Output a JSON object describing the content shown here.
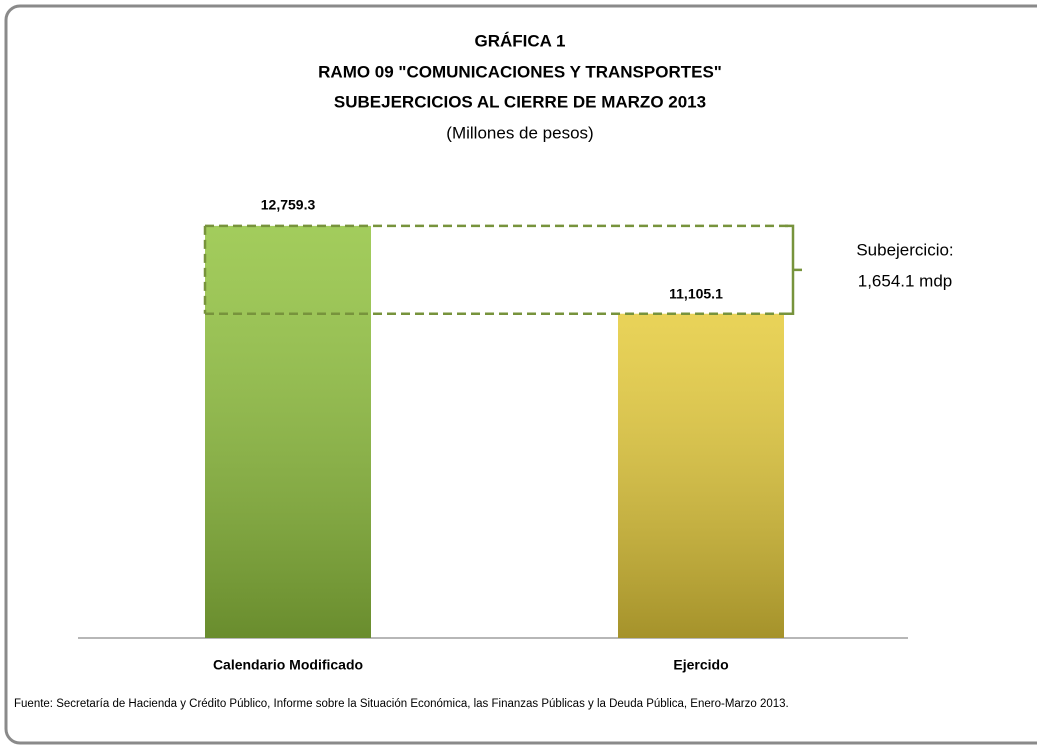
{
  "chart_data": {
    "type": "bar",
    "title": "GRÁFICA 1",
    "title_lines": [
      "RAMO 09 \"COMUNICACIONES Y TRANSPORTES\"",
      "SUBEJERCICIOS AL CIERRE DE MARZO 2013"
    ],
    "subtitle": "(Millones de pesos)",
    "categories": [
      "Calendario Modificado",
      "Ejercido"
    ],
    "values": [
      12759.3,
      11105.1
    ],
    "value_labels": [
      "12,759.3",
      "11,105.1"
    ],
    "colors": [
      "#92c33f",
      "#e5cb3b"
    ],
    "ylim": [
      5000,
      14000
    ],
    "annotation": {
      "label": "Subejercicio:",
      "value": 1654.1,
      "value_label": "1,654.1 mdp",
      "color": "#77933c"
    },
    "source": "Fuente: Secretaría de Hacienda y Crédito Público, Informe sobre la Situación Económica, las Finanzas Públicas y la Deuda Pública, Enero-Marzo 2013."
  }
}
